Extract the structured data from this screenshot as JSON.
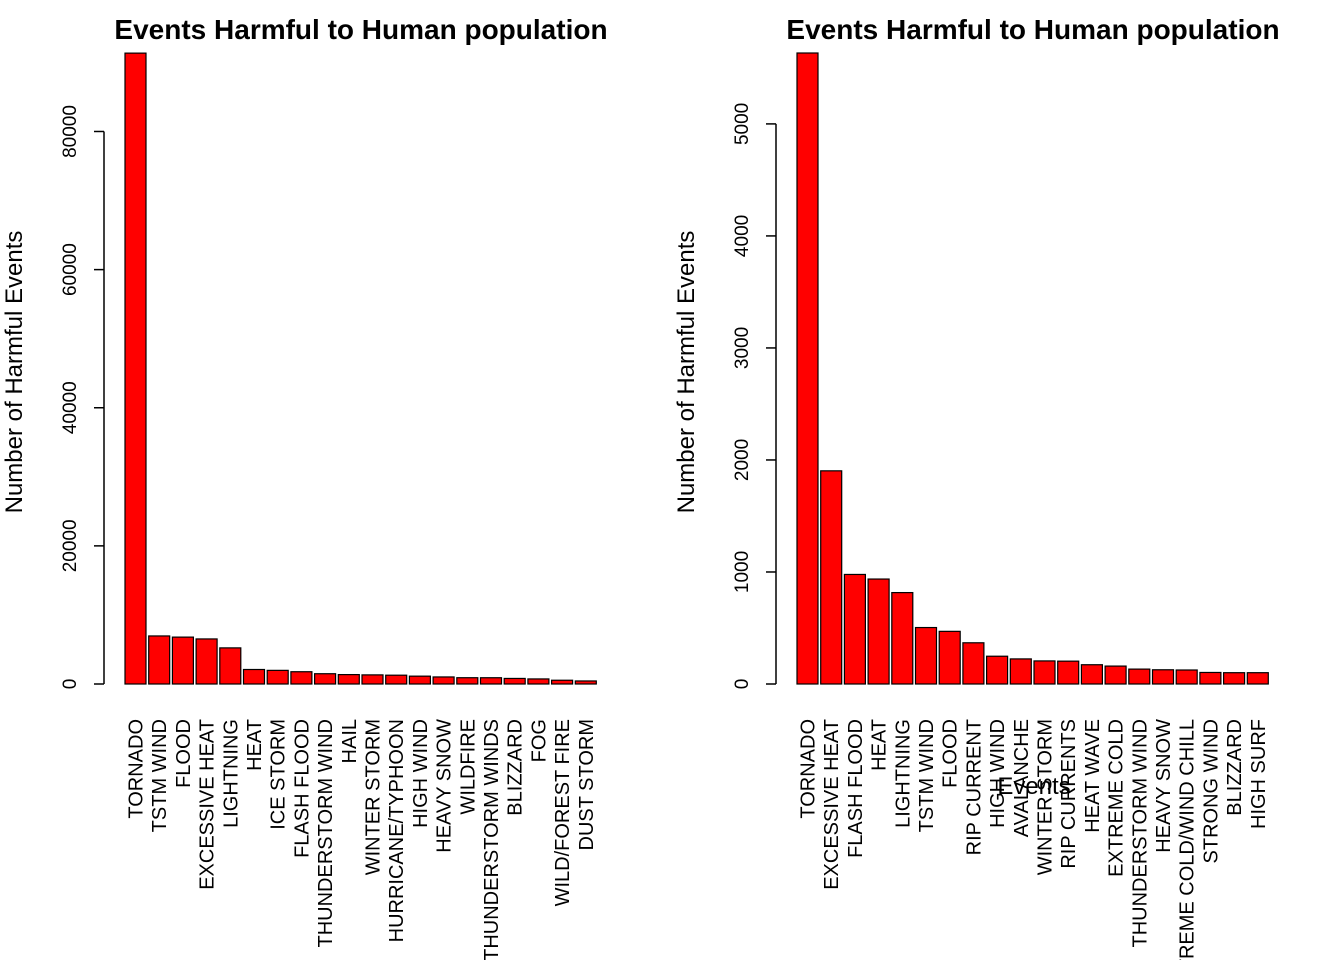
{
  "chart_data": [
    {
      "type": "bar",
      "title": "Events Harmful to Human population",
      "xlabel": "",
      "ylabel": "Number of Harmful Events",
      "ylim": [
        0,
        91364
      ],
      "yticks": [
        0,
        20000,
        40000,
        60000,
        80000
      ],
      "bar_color": "#ff0000",
      "categories": [
        "TORNADO",
        "TSTM WIND",
        "FLOOD",
        "EXCESSIVE HEAT",
        "LIGHTNING",
        "HEAT",
        "ICE STORM",
        "FLASH FLOOD",
        "THUNDERSTORM WIND",
        "HAIL",
        "WINTER STORM",
        "HURRICANE/TYPHOON",
        "HIGH WIND",
        "HEAVY SNOW",
        "WILDFIRE",
        "THUNDERSTORM WINDS",
        "BLIZZARD",
        "FOG",
        "WILD/FOREST FIRE",
        "DUST STORM"
      ],
      "values": [
        91346,
        6957,
        6789,
        6525,
        5230,
        2100,
        1975,
        1777,
        1488,
        1361,
        1321,
        1275,
        1137,
        1021,
        911,
        908,
        805,
        734,
        545,
        440
      ]
    },
    {
      "type": "bar",
      "title": "Events Harmful to Human population",
      "xlabel": "Events",
      "ylabel": "Number of Harmful Events",
      "ylim": [
        0,
        5633
      ],
      "yticks": [
        0,
        1000,
        2000,
        3000,
        4000,
        5000
      ],
      "bar_color": "#ff0000",
      "categories": [
        "TORNADO",
        "EXCESSIVE HEAT",
        "FLASH FLOOD",
        "HEAT",
        "LIGHTNING",
        "TSTM WIND",
        "FLOOD",
        "RIP CURRENT",
        "HIGH WIND",
        "AVALANCHE",
        "WINTER STORM",
        "RIP CURRENTS",
        "HEAT WAVE",
        "EXTREME COLD",
        "THUNDERSTORM WIND",
        "HEAVY SNOW",
        "EXTREME COLD/WIND CHILL",
        "STRONG WIND",
        "BLIZZARD",
        "HIGH SURF"
      ],
      "values": [
        5633,
        1903,
        978,
        937,
        816,
        504,
        470,
        368,
        248,
        224,
        206,
        204,
        172,
        160,
        133,
        127,
        125,
        103,
        101,
        101
      ]
    }
  ]
}
